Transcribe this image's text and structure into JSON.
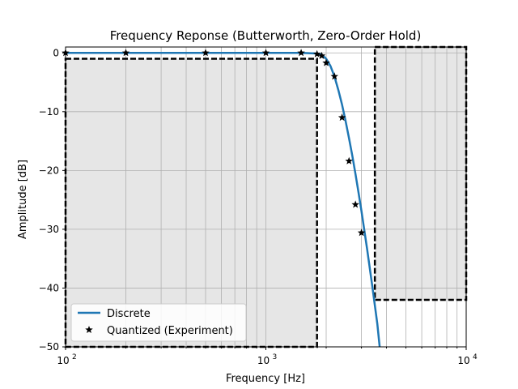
{
  "chart_data": {
    "type": "line",
    "title": "Frequency Reponse (Butterworth, Zero-Order Hold)",
    "xlabel": "Frequency [Hz]",
    "ylabel": "Amplitude [dB]",
    "xscale": "log",
    "xlim": [
      100,
      10000
    ],
    "ylim": [
      -50,
      1
    ],
    "xticks": [
      {
        "value": 100,
        "base": "10",
        "exp": "2"
      },
      {
        "value": 1000,
        "base": "10",
        "exp": "3"
      },
      {
        "value": 10000,
        "base": "10",
        "exp": "4"
      }
    ],
    "yticks": [
      {
        "value": 0,
        "label": "0"
      },
      {
        "value": -10,
        "label": "−10"
      },
      {
        "value": -20,
        "label": "−20"
      },
      {
        "value": -30,
        "label": "−30"
      },
      {
        "value": -40,
        "label": "−40"
      },
      {
        "value": -50,
        "label": "−50"
      }
    ],
    "grid": true,
    "legend_position": "lower-left",
    "colors": {
      "line": "#1f77b4",
      "marker": "#000000",
      "region_fill": "#e6e6e6",
      "grid": "#b0b0b0"
    },
    "series": [
      {
        "name": "Discrete",
        "style": "line",
        "x": [
          100,
          500,
          1000,
          1500,
          1800,
          1900,
          2000,
          2100,
          2200,
          2300,
          2400,
          2500,
          2600,
          2700,
          2800,
          2900,
          3000,
          3200,
          3400,
          3600,
          3700
        ],
        "y": [
          0,
          0,
          0,
          0,
          -0.1,
          -0.3,
          -1.0,
          -2.2,
          -4.0,
          -6.3,
          -8.8,
          -11.6,
          -14.5,
          -17.5,
          -20.6,
          -23.7,
          -26.9,
          -33.3,
          -39.7,
          -46.1,
          -50
        ]
      },
      {
        "name": "Quantized (Experiment)",
        "style": "star-markers",
        "x": [
          100,
          200,
          500,
          1000,
          1500,
          1800,
          1900,
          2000,
          2200,
          2400,
          2600,
          2800,
          3000
        ],
        "y": [
          0,
          0,
          0,
          0,
          0,
          -0.2,
          -0.5,
          -1.7,
          -4.0,
          -11.0,
          -18.4,
          -25.8,
          -30.6
        ]
      }
    ],
    "spec_regions": [
      {
        "name": "passband",
        "x": [
          100,
          1800
        ],
        "y": [
          -50,
          -1
        ]
      },
      {
        "name": "stopband",
        "x": [
          3500,
          10000
        ],
        "y": [
          -42,
          1
        ]
      }
    ]
  }
}
